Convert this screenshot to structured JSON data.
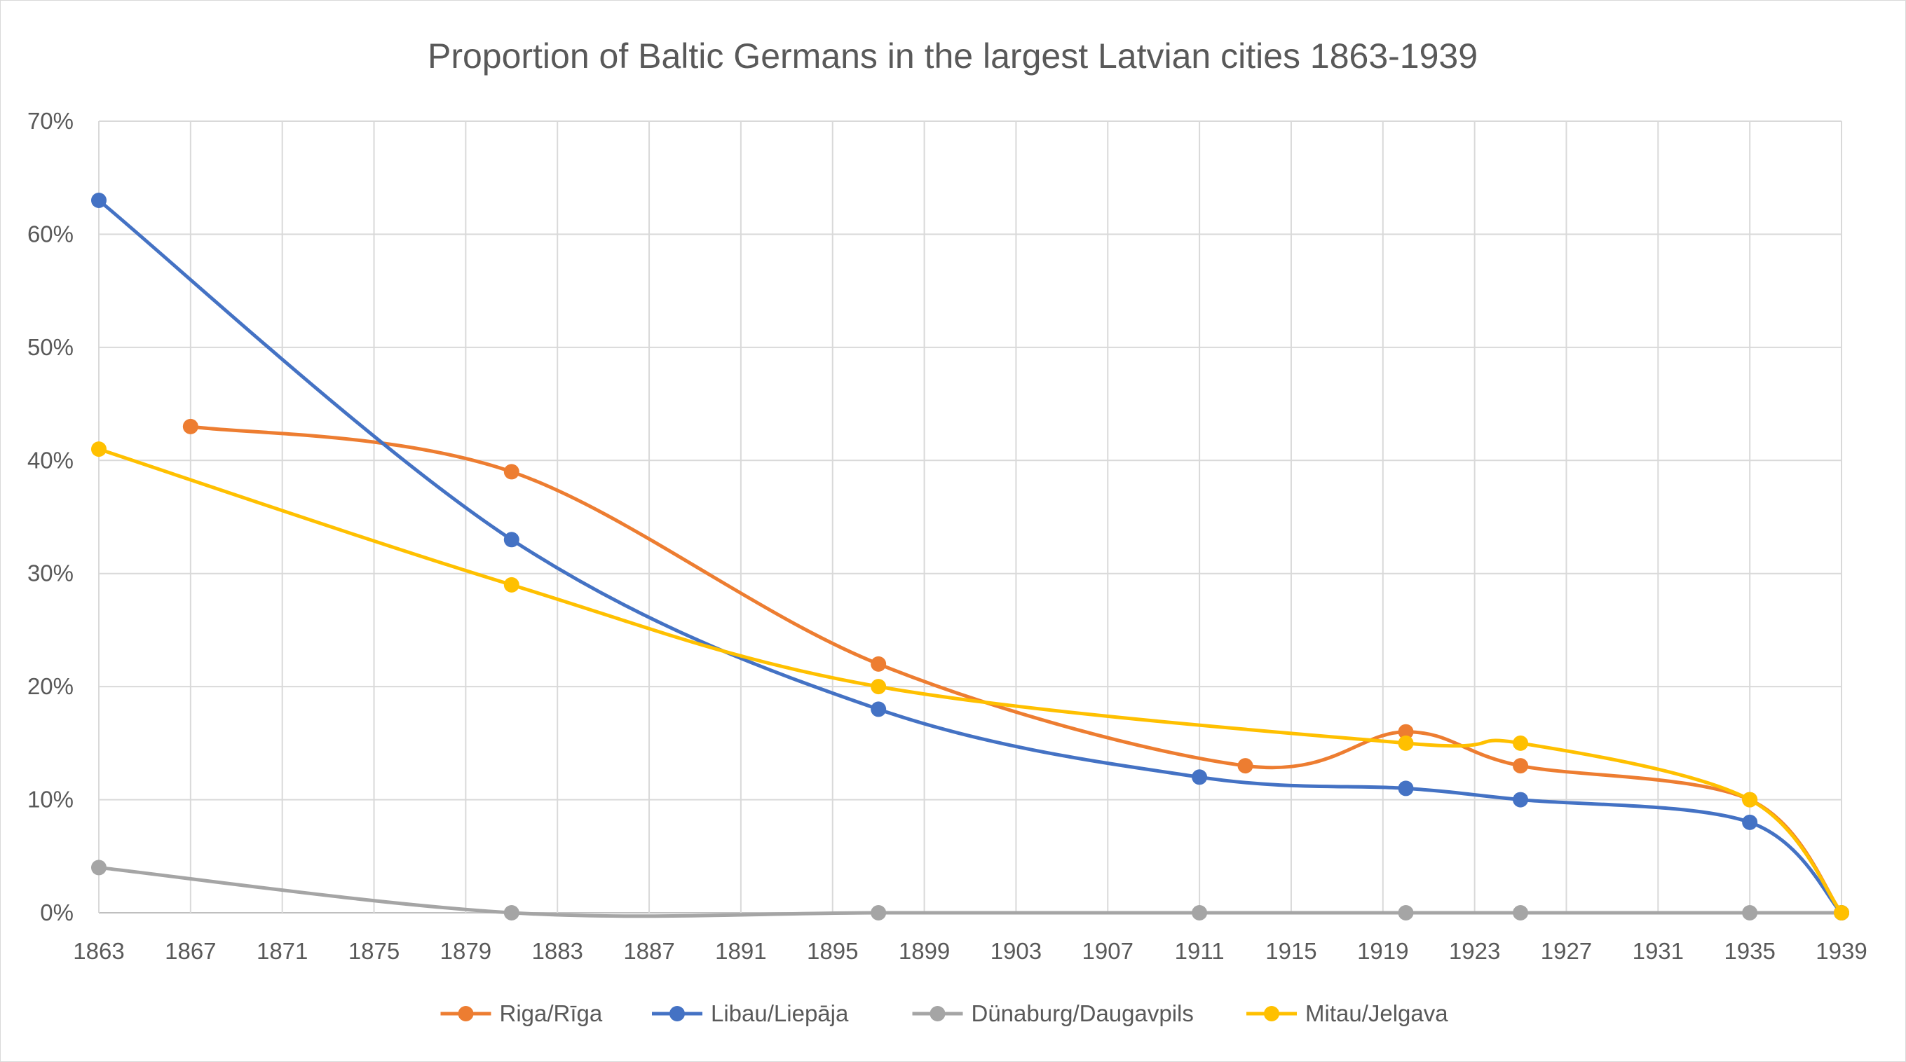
{
  "chart_data": {
    "type": "line",
    "title": "Proportion of Baltic Germans in the largest Latvian cities 1863-1939",
    "xlabel": "",
    "ylabel": "",
    "xlim": [
      1863,
      1939
    ],
    "ylim": [
      0,
      70
    ],
    "x_ticks": [
      1863,
      1867,
      1871,
      1875,
      1879,
      1883,
      1887,
      1891,
      1895,
      1899,
      1903,
      1907,
      1911,
      1915,
      1919,
      1923,
      1927,
      1931,
      1935,
      1939
    ],
    "y_ticks": [
      0,
      10,
      20,
      30,
      40,
      50,
      60,
      70
    ],
    "y_tick_labels": [
      "0%",
      "10%",
      "20%",
      "30%",
      "40%",
      "50%",
      "60%",
      "70%"
    ],
    "grid": true,
    "smooth": true,
    "legend_position": "bottom",
    "series": [
      {
        "name": "Riga/Rīga",
        "color": "#ED7D31",
        "points": [
          [
            1867,
            43
          ],
          [
            1881,
            39
          ],
          [
            1897,
            22
          ],
          [
            1913,
            13
          ],
          [
            1920,
            16
          ],
          [
            1925,
            13
          ],
          [
            1935,
            10
          ],
          [
            1939,
            0
          ]
        ]
      },
      {
        "name": "Libau/Liepāja",
        "color": "#4472C4",
        "points": [
          [
            1863,
            63
          ],
          [
            1881,
            33
          ],
          [
            1897,
            18
          ],
          [
            1911,
            12
          ],
          [
            1920,
            11
          ],
          [
            1925,
            10
          ],
          [
            1935,
            8
          ],
          [
            1939,
            0
          ]
        ]
      },
      {
        "name": "Dünaburg/Daugavpils",
        "color": "#A5A5A5",
        "points": [
          [
            1863,
            4
          ],
          [
            1881,
            0
          ],
          [
            1897,
            0
          ],
          [
            1911,
            0
          ],
          [
            1920,
            0
          ],
          [
            1925,
            0
          ],
          [
            1935,
            0
          ],
          [
            1939,
            0
          ]
        ]
      },
      {
        "name": "Mitau/Jelgava",
        "color": "#FFC000",
        "points": [
          [
            1863,
            41
          ],
          [
            1881,
            29
          ],
          [
            1897,
            20
          ],
          [
            1920,
            15
          ],
          [
            1925,
            15
          ],
          [
            1935,
            10
          ],
          [
            1939,
            0
          ]
        ]
      }
    ]
  }
}
